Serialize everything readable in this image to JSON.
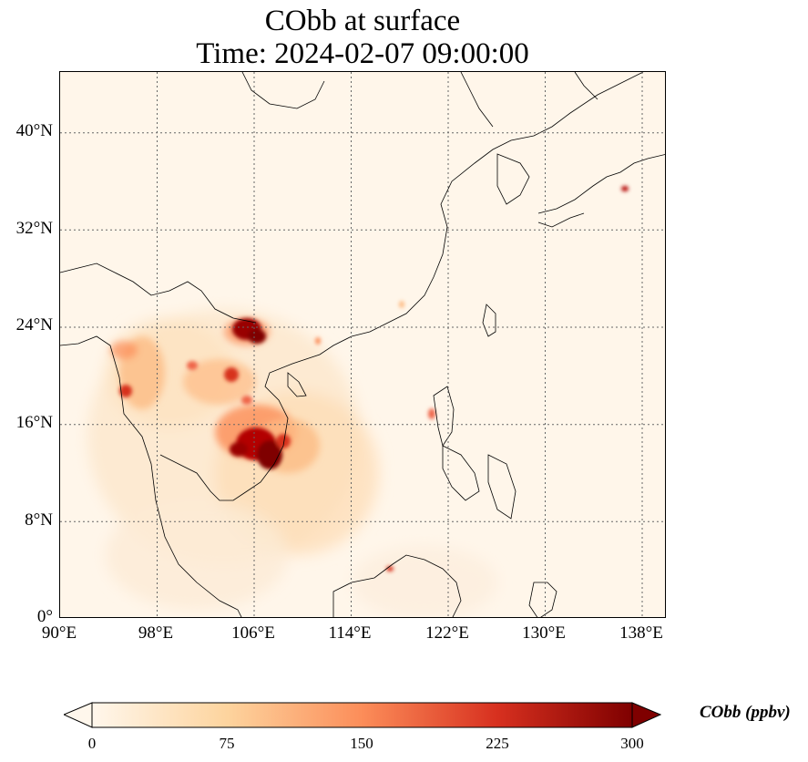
{
  "title": {
    "line1": "CObb at surface",
    "line2": "Time: 2024-02-07 09:00:00"
  },
  "map": {
    "projection": "PlateCarree",
    "lon_range": [
      90,
      140
    ],
    "lat_range": [
      0,
      45
    ],
    "gridlines": "dotted",
    "lat_ticks": [
      "40°N",
      "32°N",
      "24°N",
      "16°N",
      "8°N",
      "0°"
    ],
    "lon_ticks": [
      "90°E",
      "98°E",
      "106°E",
      "114°E",
      "122°E",
      "130°E",
      "138°E"
    ],
    "field_variable": "CObb",
    "hotspots": [
      {
        "region": "Northern Vietnam / Yunnan border",
        "lon": 105.5,
        "lat": 23.5,
        "value": 300
      },
      {
        "region": "Laos / Cambodia / Central Vietnam",
        "lon": 105.8,
        "lat": 14.5,
        "value": 300
      },
      {
        "region": "Northern Myanmar / Thailand",
        "lon": 95.0,
        "lat": 18.5,
        "value": 180
      },
      {
        "region": "Northern Laos",
        "lon": 103.0,
        "lat": 20.0,
        "value": 170
      },
      {
        "region": "Luzon",
        "lon": 121.0,
        "lat": 17.0,
        "value": 120
      },
      {
        "region": "Borneo (Sabah)",
        "lon": 117.0,
        "lat": 4.0,
        "value": 120
      },
      {
        "region": "Japan (Honshu)",
        "lon": 138.5,
        "lat": 35.5,
        "value": 230
      }
    ]
  },
  "colorbar": {
    "label": "CObb (ppbv)",
    "ticks": [
      "0",
      "75",
      "150",
      "225",
      "300"
    ],
    "min": 0,
    "max": 300,
    "extend": "both",
    "cmap": "OrRd",
    "colors": [
      "#fff7ec",
      "#fdd49e",
      "#fc8d59",
      "#d7301f",
      "#7f0000"
    ]
  }
}
